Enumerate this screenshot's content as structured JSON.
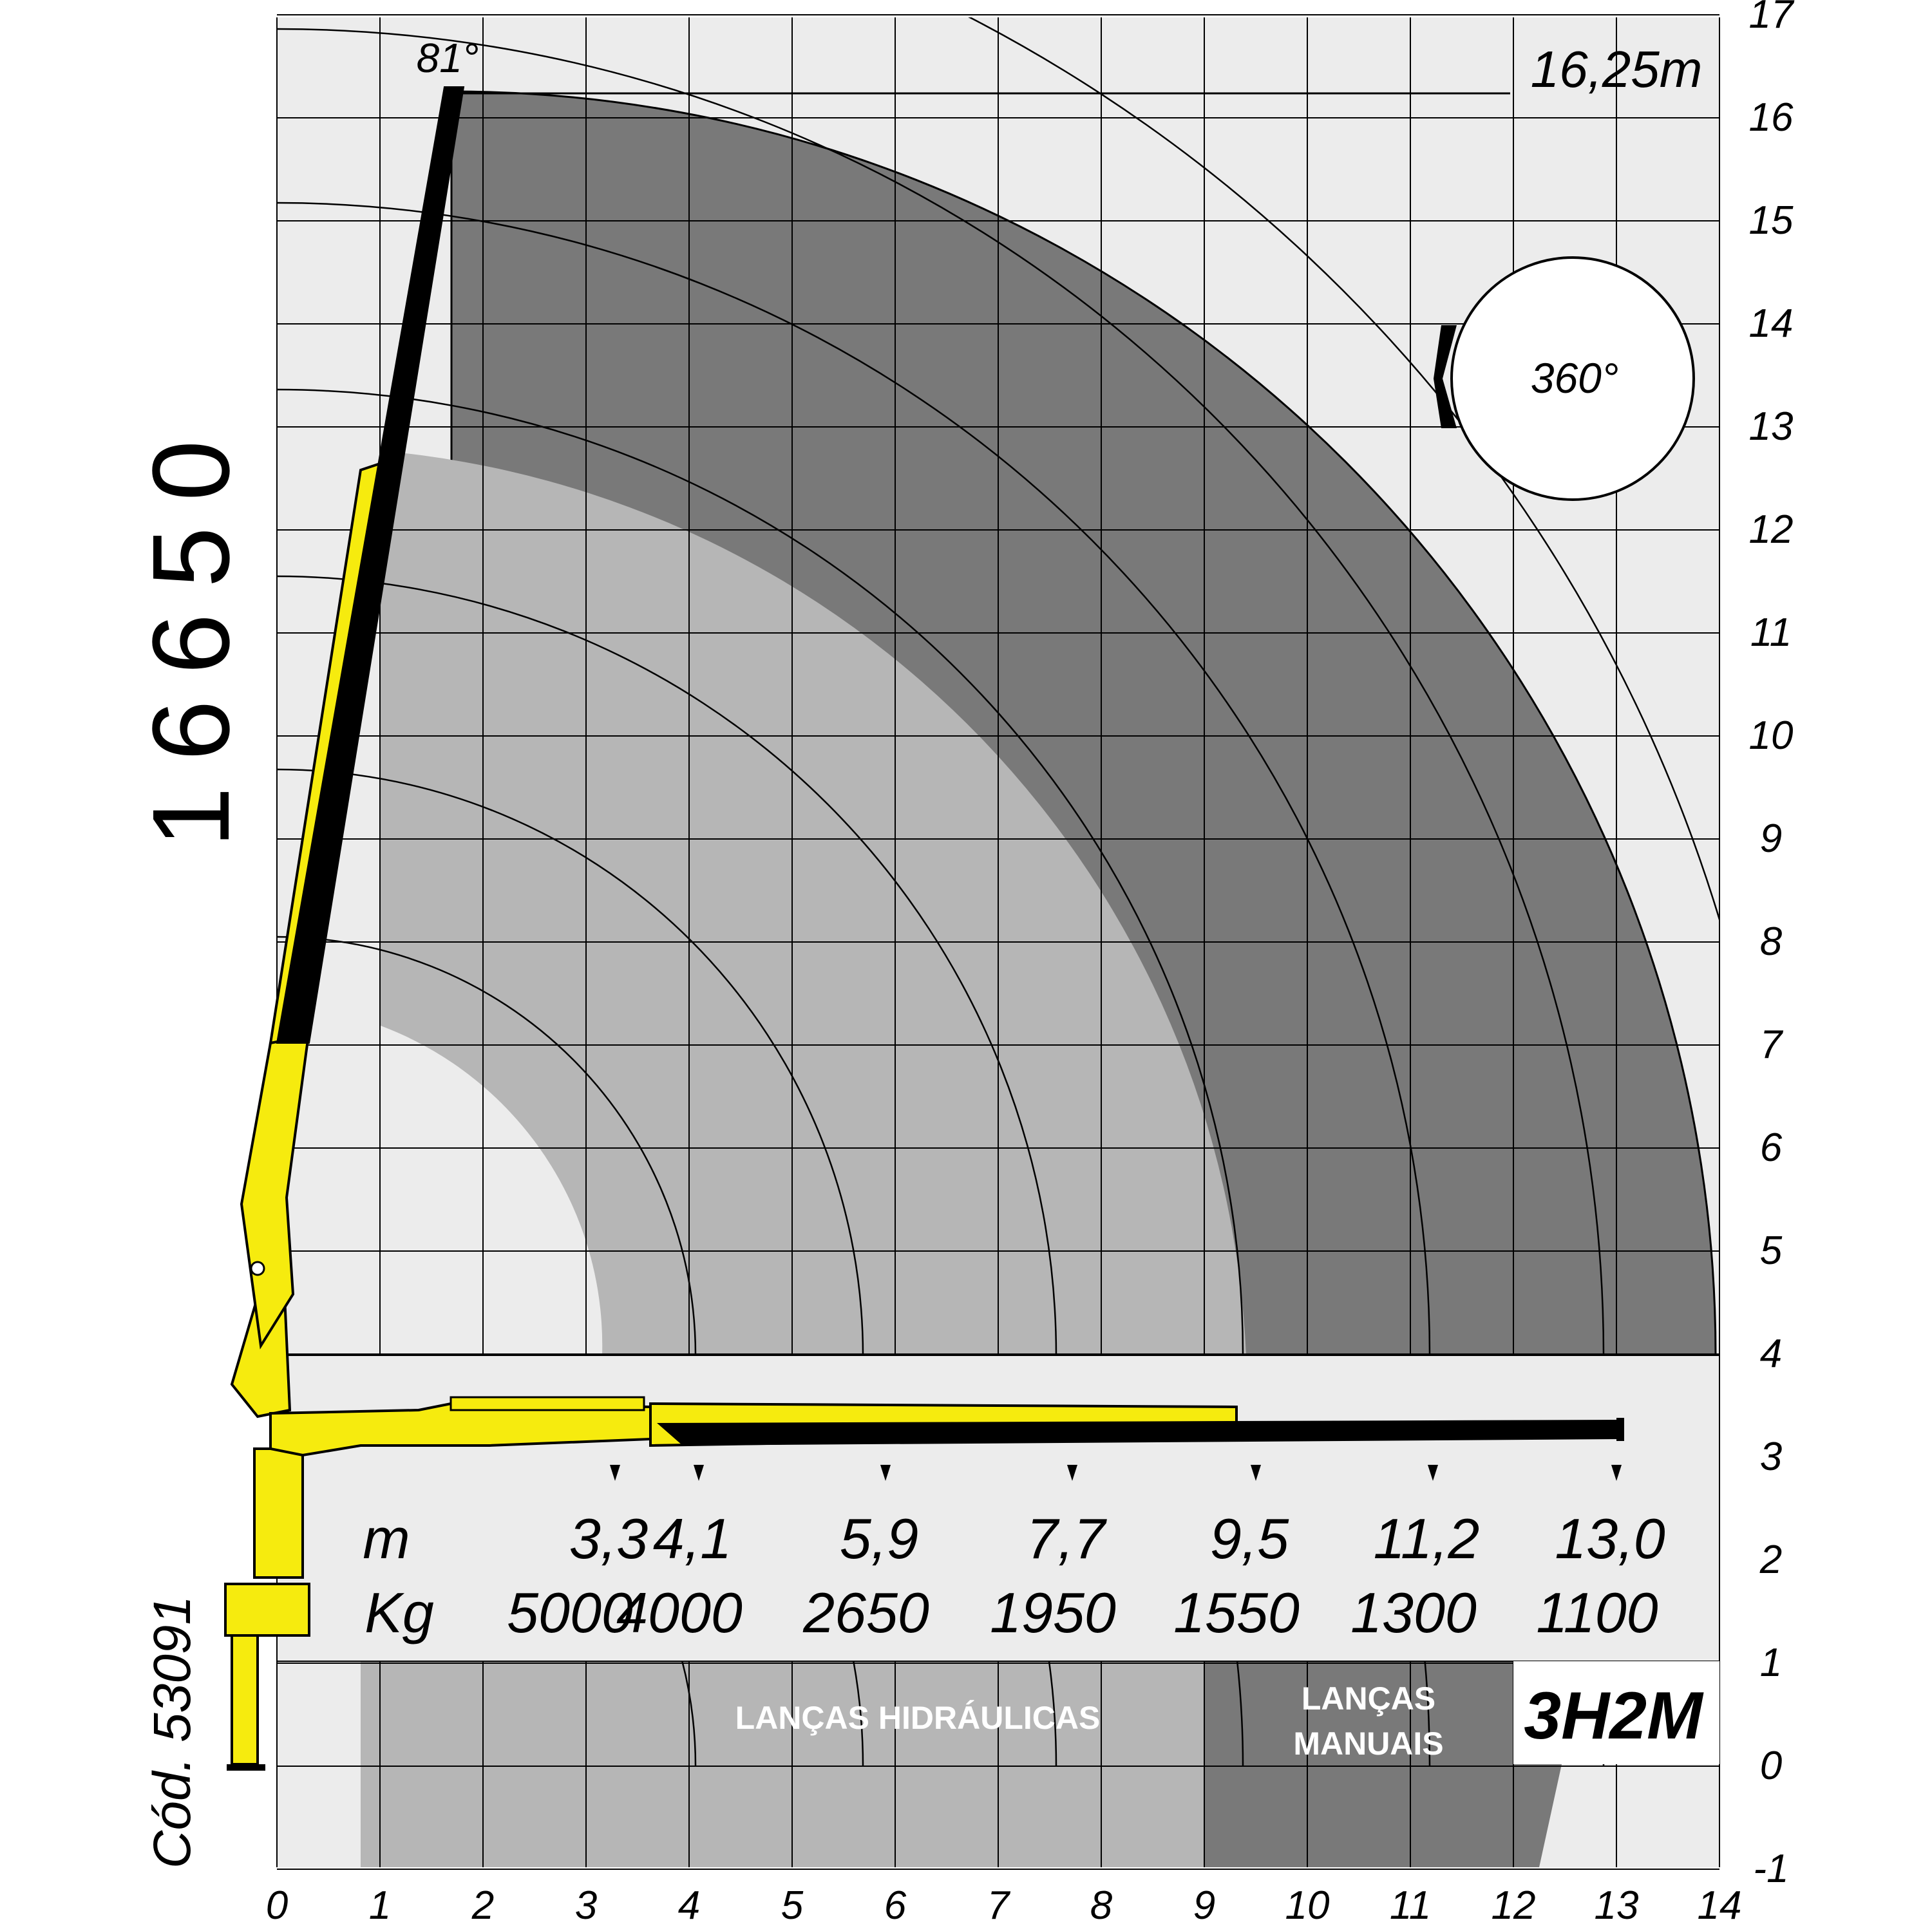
{
  "diagram": {
    "model": "16650",
    "code": "Cód. 53091",
    "configuration": "3H2M",
    "max_height_label": "16,25m",
    "max_angle_label": "81°",
    "rotation_label": "360°",
    "zone_hydraulic": [
      "LANÇAS HIDRÁULICAS"
    ],
    "zone_manual": [
      "LANÇAS",
      "MANUAIS"
    ],
    "x_axis_ticks": [
      "0",
      "1",
      "2",
      "3",
      "4",
      "5",
      "6",
      "7",
      "8",
      "9",
      "10",
      "11",
      "12",
      "13",
      "14"
    ],
    "y_axis_ticks": [
      "-1",
      "0",
      "1",
      "2",
      "3",
      "4",
      "5",
      "6",
      "7",
      "8",
      "9",
      "10",
      "11",
      "12",
      "13",
      "14",
      "15",
      "16",
      "17"
    ],
    "load_table": {
      "row_labels": [
        "m",
        "Kg"
      ],
      "reach_m": [
        "3,3",
        "4,1",
        "5,9",
        "7,7",
        "9,5",
        "11,2",
        "13,0"
      ],
      "load_kg": [
        "5000",
        "4000",
        "2650",
        "1950",
        "1550",
        "1300",
        "1100"
      ]
    },
    "colors": {
      "boom_yellow": "#f6eb0e",
      "extension_black": "#000000",
      "envelope_dark": "#797979",
      "zone_light": "#b6b6b6",
      "band_background": "#ececec"
    }
  }
}
